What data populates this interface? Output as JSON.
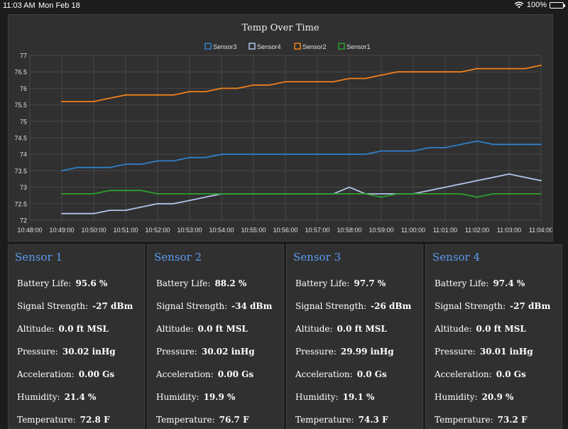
{
  "status_bar": {
    "time": "11:03 AM",
    "date": "Mon Feb 18",
    "battery": "100%",
    "battery_color": "#4cd964"
  },
  "chart_data": {
    "type": "line",
    "title": "Temp Over Time",
    "xlabel": "",
    "ylabel": "",
    "ylim": [
      72,
      77
    ],
    "yticks": [
      "72",
      "72.5",
      "73",
      "73.5",
      "74",
      "74.5",
      "75",
      "75.5",
      "76",
      "76.5",
      "77"
    ],
    "xticks": [
      "10:48:00",
      "10:49:00",
      "10:50:00",
      "10:51:00",
      "10:52:00",
      "10:53:00",
      "10:54:00",
      "10:55:00",
      "10:56:00",
      "10:57:00",
      "10:58:00",
      "10:59:00",
      "11:00:00",
      "11:01:00",
      "11:02:00",
      "11:03:00",
      "11:04:00"
    ],
    "xlim_minutes": [
      0,
      16
    ],
    "legend_position": "top",
    "series": [
      {
        "name": "Sensor3",
        "color": "#2f7fc8",
        "x": [
          1.0,
          1.5,
          2.0,
          2.5,
          3.0,
          3.5,
          4.0,
          4.5,
          5.0,
          5.5,
          6.0,
          6.5,
          7.0,
          7.5,
          8.0,
          8.5,
          9.0,
          9.5,
          10.0,
          10.5,
          11.0,
          11.5,
          12.0,
          12.5,
          13.0,
          13.5,
          14.0,
          14.5,
          15.0,
          15.5,
          16.0
        ],
        "y": [
          73.5,
          73.6,
          73.6,
          73.6,
          73.7,
          73.7,
          73.8,
          73.8,
          73.9,
          73.9,
          74.0,
          74.0,
          74.0,
          74.0,
          74.0,
          74.0,
          74.0,
          74.0,
          74.0,
          74.0,
          74.1,
          74.1,
          74.1,
          74.2,
          74.2,
          74.3,
          74.4,
          74.3,
          74.3,
          74.3,
          74.3
        ]
      },
      {
        "name": "Sensor4",
        "color": "#b0c4e8",
        "x": [
          1.0,
          1.5,
          2.0,
          2.5,
          3.0,
          3.5,
          4.0,
          4.5,
          5.0,
          5.5,
          6.0,
          6.5,
          7.0,
          7.5,
          8.0,
          8.5,
          9.0,
          9.5,
          10.0,
          10.5,
          11.0,
          11.5,
          12.0,
          12.5,
          13.0,
          13.5,
          14.0,
          14.5,
          15.0,
          15.5,
          16.0
        ],
        "y": [
          72.2,
          72.2,
          72.2,
          72.3,
          72.3,
          72.4,
          72.5,
          72.5,
          72.6,
          72.7,
          72.8,
          72.8,
          72.8,
          72.8,
          72.8,
          72.8,
          72.8,
          72.8,
          73.0,
          72.8,
          72.8,
          72.8,
          72.8,
          72.9,
          73.0,
          73.1,
          73.2,
          73.3,
          73.4,
          73.3,
          73.2
        ]
      },
      {
        "name": "Sensor2",
        "color": "#f07f1c",
        "x": [
          1.0,
          1.5,
          2.0,
          2.5,
          3.0,
          3.5,
          4.0,
          4.5,
          5.0,
          5.5,
          6.0,
          6.5,
          7.0,
          7.5,
          8.0,
          8.5,
          9.0,
          9.5,
          10.0,
          10.5,
          11.0,
          11.5,
          12.0,
          12.5,
          13.0,
          13.5,
          14.0,
          14.5,
          15.0,
          15.5,
          16.0
        ],
        "y": [
          75.6,
          75.6,
          75.6,
          75.7,
          75.8,
          75.8,
          75.8,
          75.8,
          75.9,
          75.9,
          76.0,
          76.0,
          76.1,
          76.1,
          76.2,
          76.2,
          76.2,
          76.2,
          76.3,
          76.3,
          76.4,
          76.5,
          76.5,
          76.5,
          76.5,
          76.5,
          76.6,
          76.6,
          76.6,
          76.6,
          76.7
        ]
      },
      {
        "name": "Sensor1",
        "color": "#2ea02e",
        "x": [
          1.0,
          1.5,
          2.0,
          2.5,
          3.0,
          3.5,
          4.0,
          4.5,
          5.0,
          5.5,
          6.0,
          6.5,
          7.0,
          7.5,
          8.0,
          8.5,
          9.0,
          9.5,
          10.0,
          10.5,
          11.0,
          11.5,
          12.0,
          12.5,
          13.0,
          13.5,
          14.0,
          14.5,
          15.0,
          15.5,
          16.0
        ],
        "y": [
          72.8,
          72.8,
          72.8,
          72.9,
          72.9,
          72.9,
          72.8,
          72.8,
          72.8,
          72.8,
          72.8,
          72.8,
          72.8,
          72.8,
          72.8,
          72.8,
          72.8,
          72.8,
          72.8,
          72.8,
          72.7,
          72.8,
          72.8,
          72.8,
          72.8,
          72.8,
          72.7,
          72.8,
          72.8,
          72.8,
          72.8
        ]
      }
    ]
  },
  "sensors": [
    {
      "title": "Sensor 1",
      "battery_label": "Battery Life:",
      "battery": "95.6 %",
      "signal_label": "Signal Strength:",
      "signal": "-27 dBm",
      "altitude_label": "Altitude:",
      "altitude": "0.0 ft MSL",
      "pressure_label": "Pressure:",
      "pressure": "30.02 inHg",
      "accel_label": "Acceleration:",
      "accel": "0.00 Gs",
      "humidity_label": "Humidity:",
      "humidity": "21.4 %",
      "temp_label": "Temperature:",
      "temp": "72.8 F"
    },
    {
      "title": "Sensor 2",
      "battery_label": "Battery Life:",
      "battery": "88.2 %",
      "signal_label": "Signal Strength:",
      "signal": "-34 dBm",
      "altitude_label": "Altitude:",
      "altitude": "0.0 ft MSL",
      "pressure_label": "Pressure:",
      "pressure": "30.02 inHg",
      "accel_label": "Acceleration:",
      "accel": "0.00 Gs",
      "humidity_label": "Humidity:",
      "humidity": "19.9 %",
      "temp_label": "Temperature:",
      "temp": "76.7 F"
    },
    {
      "title": "Sensor 3",
      "battery_label": "Battery Life:",
      "battery": "97.7 %",
      "signal_label": "Signal Strength:",
      "signal": "-26 dBm",
      "altitude_label": "Altitude:",
      "altitude": "0.0 ft MSL",
      "pressure_label": "Pressure:",
      "pressure": "29.99 inHg",
      "accel_label": "Acceleration:",
      "accel": "0.0 Gs",
      "humidity_label": "Humidity:",
      "humidity": "19.1 %",
      "temp_label": "Temperature:",
      "temp": "74.3 F"
    },
    {
      "title": "Sensor 4",
      "battery_label": "Battery Life:",
      "battery": "97.4 %",
      "signal_label": "Signal Strength:",
      "signal": "-27 dBm",
      "altitude_label": "Altitude:",
      "altitude": "0.0 ft MSL",
      "pressure_label": "Pressure:",
      "pressure": "30.01 inHg",
      "accel_label": "Acceleration:",
      "accel": "0.0 Gs",
      "humidity_label": "Humidity:",
      "humidity": "20.9 %",
      "temp_label": "Temperature:",
      "temp": "73.2 F"
    }
  ]
}
